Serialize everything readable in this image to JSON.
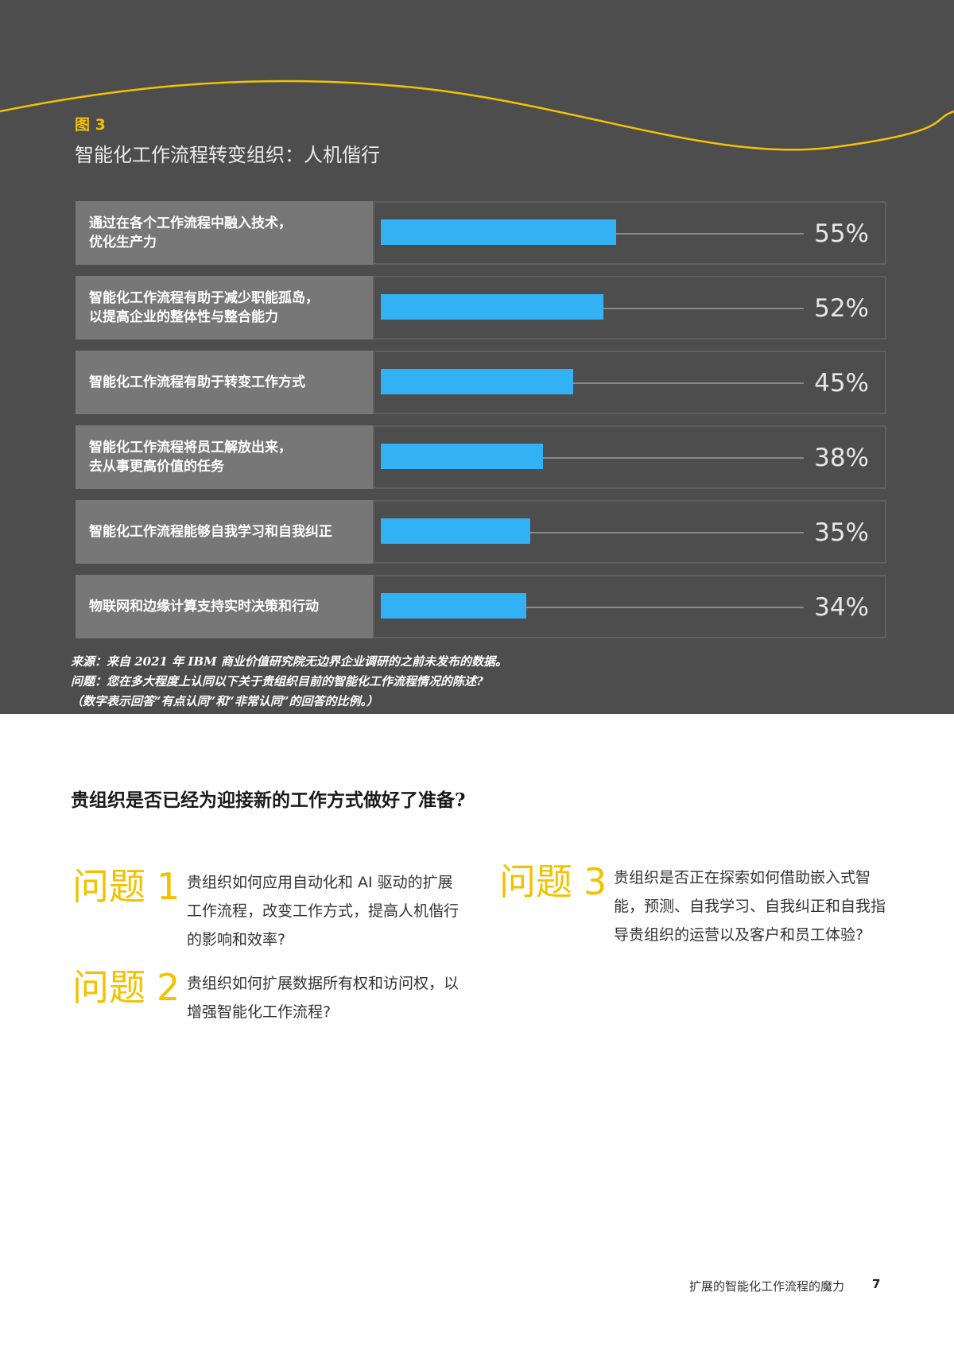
{
  "figure": {
    "label": "图 3",
    "title": "智能化工作流程转变组织：人机偕行"
  },
  "chart_data": {
    "type": "bar",
    "orientation": "horizontal",
    "categories": [
      "通过在各个工作流程中融入技术，\n优化生产力",
      "智能化工作流程有助于减少职能孤岛，\n以提高企业的整体性与整合能力",
      "智能化工作流程有助于转变工作方式",
      "智能化工作流程将员工解放出来，\n去从事更高价值的任务",
      "智能化工作流程能够自我学习和自我纠正",
      "物联网和边缘计算支持实时决策和行动"
    ],
    "values": [
      55,
      52,
      45,
      38,
      35,
      34
    ],
    "value_labels": [
      "55%",
      "52%",
      "45%",
      "38%",
      "35%",
      "34%"
    ],
    "xlim": [
      0,
      100
    ],
    "bar_color": "#33b1f5"
  },
  "source": {
    "line1": "来源：来自 2021 年 IBM 商业价值研究院无边界企业调研的之前未发布的数据。",
    "line2": "问题：您在多大程度上认同以下关于贵组织目前的智能化工作流程情况的陈述?",
    "line3": "（数字表示回答“有点认同”和“非常认同”的回答的比例。）"
  },
  "section": {
    "title": "贵组织是否已经为迎接新的工作方式做好了准备?"
  },
  "questions": [
    {
      "word": "问题",
      "num": "1",
      "text": "贵组织如何应用自动化和 AI 驱动的扩展工作流程，改变工作方式，提高人机偕行的影响和效率?"
    },
    {
      "word": "问题",
      "num": "2",
      "text": "贵组织如何扩展数据所有权和访问权，以增强智能化工作流程?"
    },
    {
      "word": "问题",
      "num": "3",
      "text": "贵组织是否正在探索如何借助嵌入式智能，预测、自我学习、自我纠正和自我指导贵组织的运营以及客户和员工体验?"
    }
  ],
  "footer": {
    "title": "扩展的智能化工作流程的魔力",
    "page": "7"
  },
  "colors": {
    "panel": "#4d4d4d",
    "accent": "#f2c200",
    "bar": "#33b1f5"
  }
}
